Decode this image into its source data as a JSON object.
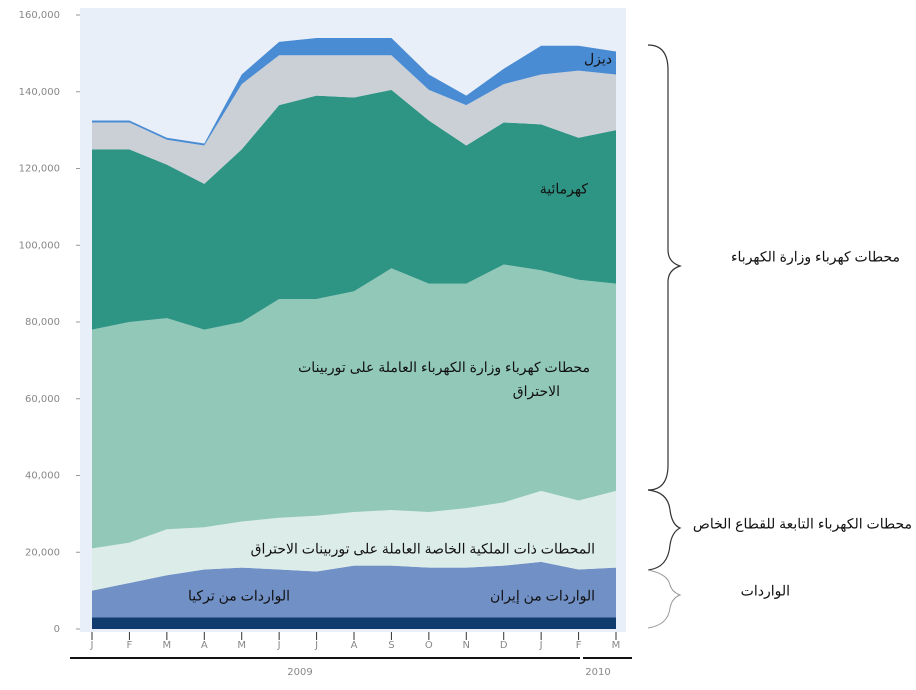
{
  "chart_data": {
    "type": "stacked_area",
    "categories": [
      "J",
      "F",
      "M",
      "A",
      "M",
      "J",
      "J",
      "A",
      "S",
      "O",
      "N",
      "D",
      "J",
      "F",
      "M"
    ],
    "x_group_labels": [
      "2009",
      "2010"
    ],
    "ylim": [
      0,
      160000
    ],
    "yticks": [
      0,
      {
        "value": 20000,
        "label": "20,000"
      },
      {
        "value": 40000,
        "label": "40,000"
      },
      {
        "value": 60000,
        "label": "60,000"
      },
      {
        "value": 80000,
        "label": "80,000"
      },
      {
        "value": 100000,
        "label": "100,000"
      },
      {
        "value": 120000,
        "label": "120,000"
      },
      {
        "value": 140000,
        "label": "140,000"
      },
      {
        "value": 160000,
        "label": "160,000"
      }
    ],
    "series": [
      {
        "name": "الواردات من تركيا",
        "color": "#0f3b6e",
        "values": [
          3000,
          3000,
          3000,
          3000,
          3000,
          3000,
          3000,
          3000,
          3000,
          3000,
          3000,
          3000,
          3000,
          3000,
          3000
        ]
      },
      {
        "name": "الواردات من إيران",
        "color": "#7090c6",
        "values": [
          7000,
          9000,
          11000,
          12500,
          13000,
          12500,
          12000,
          13500,
          13500,
          13000,
          13000,
          13500,
          14500,
          12500,
          13000
        ]
      },
      {
        "name": "المحطات ذات الملكية الخاصة العاملة على توربينات الاحتراق",
        "color": "#dcece8",
        "values": [
          11000,
          10500,
          12000,
          11000,
          12000,
          13500,
          14500,
          14000,
          14500,
          14500,
          15500,
          16500,
          18500,
          18000,
          20000
        ]
      },
      {
        "name": "محطات كهرباء وزارة الكهرباء العاملة على  توربينات الاحتراق",
        "color": "#91c8b8",
        "values": [
          57000,
          57500,
          55000,
          51500,
          52000,
          57000,
          56500,
          57500,
          63000,
          59500,
          58500,
          62000,
          57500,
          57500,
          54000
        ]
      },
      {
        "name": "كهرمائية",
        "color": "#2e9484",
        "values": [
          47000,
          45000,
          40000,
          38000,
          45000,
          50500,
          53000,
          50500,
          46500,
          42500,
          36000,
          37000,
          38000,
          37000,
          40000
        ]
      },
      {
        "color": "#cbd0d6",
        "values": [
          7000,
          7000,
          6500,
          10000,
          17000,
          13000,
          10500,
          11000,
          9000,
          8000,
          10500,
          10000,
          13000,
          17500,
          14500
        ]
      },
      {
        "name": "ديزل",
        "color": "#4a8cd4",
        "values": [
          500,
          500,
          500,
          500,
          2500,
          3500,
          4500,
          4500,
          4500,
          4000,
          2500,
          4000,
          7500,
          6500,
          6000
        ]
      }
    ],
    "group_labels": [
      "محطات كهرباء وزارة الكهرباء",
      "محطات الكهرباء التابعة للقطاع الخاص",
      "الواردات"
    ]
  }
}
